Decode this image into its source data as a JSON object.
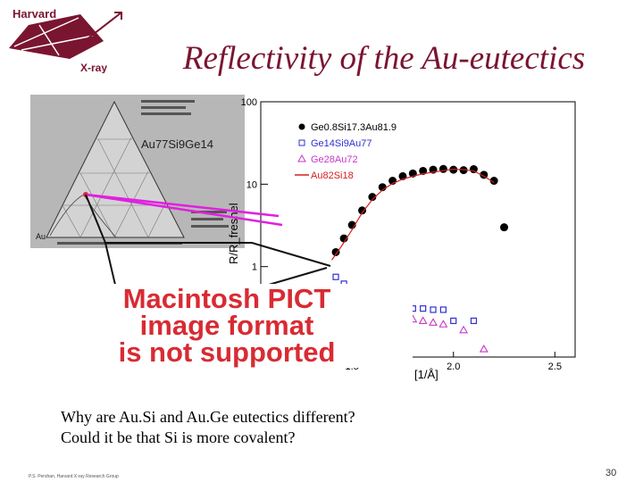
{
  "logo": {
    "top_text": "Harvard",
    "bottom_text": "X-ray"
  },
  "title": "Reflectivity of the Au-eutectics",
  "ternary": {
    "composition_label": "Au77Si9Ge14",
    "corner_label": "Au"
  },
  "chart_data": {
    "type": "scatter",
    "ylabel": "R/R_fresnel",
    "xlabel": "[1/Å]",
    "y_scale": "log",
    "y_ticks": [
      "100",
      "10",
      "1"
    ],
    "x_ticks": [
      "1.5",
      "2.0",
      "2.5"
    ],
    "legend_position": "top-right",
    "series": [
      {
        "name": "Ge0.8Si17.3Au81.9",
        "marker": "filled-circle",
        "color": "#000000",
        "x": [
          1.42,
          1.46,
          1.5,
          1.55,
          1.6,
          1.65,
          1.7,
          1.75,
          1.8,
          1.85,
          1.9,
          1.95,
          2.0,
          2.05,
          2.1,
          2.15,
          2.2,
          2.25
        ],
        "y": [
          1.5,
          2.2,
          3.2,
          4.8,
          7.0,
          9.2,
          11.0,
          12.5,
          13.5,
          14.5,
          15.0,
          15.3,
          15.0,
          14.8,
          15.2,
          13.0,
          11.0,
          3.0
        ]
      },
      {
        "name": "Ge14Si9Au77",
        "marker": "open-square",
        "color": "#2f2fd0",
        "x": [
          1.42,
          1.46,
          1.5,
          1.55,
          1.6,
          1.65,
          1.7,
          1.75,
          1.8,
          1.85,
          1.9,
          1.95,
          2.0,
          2.1
        ],
        "y": [
          0.75,
          0.62,
          0.5,
          0.42,
          0.38,
          0.34,
          0.33,
          0.31,
          0.31,
          0.31,
          0.3,
          0.3,
          0.22,
          0.22
        ]
      },
      {
        "name": "Ge28Au72",
        "marker": "open-triangle",
        "color": "#c838c8",
        "x": [
          1.42,
          1.46,
          1.5,
          1.55,
          1.6,
          1.65,
          1.7,
          1.75,
          1.8,
          1.85,
          1.9,
          1.95,
          2.05,
          2.15
        ],
        "y": [
          0.5,
          0.45,
          0.4,
          0.35,
          0.31,
          0.28,
          0.26,
          0.24,
          0.23,
          0.22,
          0.21,
          0.2,
          0.17,
          0.1
        ]
      },
      {
        "name": "Au82Si18",
        "marker": "line",
        "color": "#d22020",
        "x": [
          1.4,
          1.45,
          1.5,
          1.55,
          1.6,
          1.65,
          1.7,
          1.75,
          1.8,
          1.85,
          1.9,
          1.95,
          2.0,
          2.05,
          2.1,
          2.15,
          2.2
        ],
        "y": [
          1.2,
          1.8,
          2.8,
          4.5,
          6.5,
          8.5,
          10.2,
          11.5,
          12.5,
          13.4,
          14.0,
          14.6,
          15.2,
          15.0,
          14.5,
          12.5,
          10.5
        ]
      }
    ]
  },
  "unsupported_notice": [
    "Macintosh PICT",
    "image format",
    "is not supported"
  ],
  "question": [
    "Why are Au.Si and Au.Ge eutectics different?",
    "Could it be that Si is more covalent?"
  ],
  "footer": "P.S. Pershan, Harvard X-ray Research Group",
  "page_number": "30",
  "colors": {
    "title": "#7a1530",
    "notice": "#d82b33",
    "arrow_magenta": "#e020e0"
  }
}
